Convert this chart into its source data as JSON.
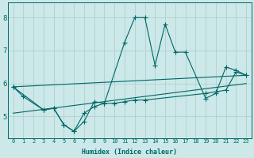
{
  "background_color": "#cce8e8",
  "grid_color": "#aacccc",
  "line_color": "#006666",
  "xlabel": "Humidex (Indice chaleur)",
  "yticks": [
    5,
    6,
    7,
    8
  ],
  "xticks": [
    0,
    1,
    2,
    3,
    4,
    5,
    6,
    7,
    8,
    9,
    10,
    11,
    12,
    13,
    14,
    15,
    16,
    17,
    18,
    19,
    20,
    21,
    22,
    23
  ],
  "xlim": [
    -0.5,
    23.5
  ],
  "ylim": [
    4.35,
    8.45
  ],
  "series1": {
    "x": [
      0,
      1,
      3,
      4,
      5,
      6,
      7,
      8,
      9,
      11,
      12,
      13,
      14,
      15,
      16,
      17,
      19,
      20,
      21,
      22,
      23
    ],
    "y": [
      5.9,
      5.6,
      5.2,
      5.25,
      4.75,
      4.55,
      4.85,
      5.45,
      5.4,
      7.25,
      8.0,
      8.0,
      6.55,
      7.8,
      6.95,
      6.95,
      5.55,
      5.7,
      6.5,
      6.4,
      6.25
    ]
  },
  "series2": {
    "x": [
      0,
      3,
      4,
      5,
      6,
      7,
      8,
      9,
      10,
      11,
      12,
      13,
      19,
      20,
      21,
      22,
      23
    ],
    "y": [
      5.9,
      5.2,
      5.25,
      4.75,
      4.55,
      5.1,
      5.3,
      5.4,
      5.4,
      5.45,
      5.5,
      5.5,
      5.7,
      5.75,
      5.8,
      6.35,
      6.25
    ]
  },
  "series3": {
    "x": [
      0,
      23
    ],
    "y": [
      5.1,
      6.0
    ]
  },
  "series4": {
    "x": [
      0,
      23
    ],
    "y": [
      5.9,
      6.25
    ]
  }
}
